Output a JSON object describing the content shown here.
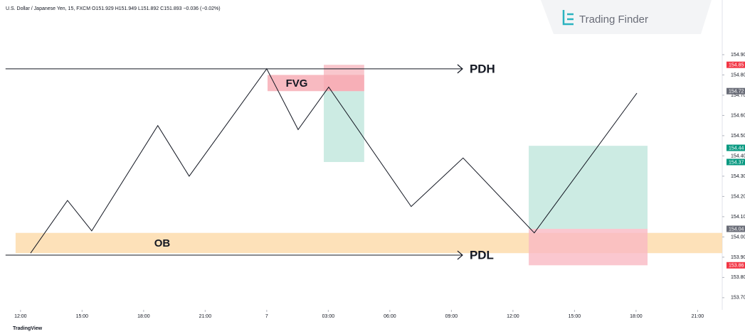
{
  "header": "U.S. Dollar / Japanese Yen, 15, FXCM  O151.929  H151.949  L151.892  C151.893  −0.036 (−0.02%)",
  "logo": "Trading Finder",
  "footer": "TradingView",
  "chart_data": {
    "type": "line",
    "color": "#131722",
    "x": [
      0.49,
      2.29,
      3.47,
      6.69,
      8.22,
      12.0,
      13.53,
      15.02,
      19.04,
      21.57,
      25.04,
      30.04
    ],
    "values": [
      153.92,
      154.18,
      154.03,
      154.55,
      154.3,
      154.83,
      154.53,
      154.74,
      154.15,
      154.39,
      154.02,
      154.71
    ],
    "xlim": [
      -1.0,
      34.2
    ],
    "ylim": [
      153.64,
      155.17
    ],
    "xticks": [
      {
        "value": 0,
        "label": "12:00"
      },
      {
        "value": 3,
        "label": "15:00"
      },
      {
        "value": 6,
        "label": "18:00"
      },
      {
        "value": 9,
        "label": "21:00"
      },
      {
        "value": 12,
        "label": "7"
      },
      {
        "value": 15,
        "label": "03:00"
      },
      {
        "value": 18,
        "label": "06:00"
      },
      {
        "value": 21,
        "label": "09:00"
      },
      {
        "value": 24,
        "label": "12:00"
      },
      {
        "value": 27,
        "label": "15:00"
      },
      {
        "value": 30,
        "label": "18:00"
      },
      {
        "value": 33,
        "label": "21:00"
      }
    ],
    "yticks": [
      {
        "value": 154.9,
        "label": "154.90"
      },
      {
        "value": 154.8,
        "label": "154.80"
      },
      {
        "value": 154.7,
        "label": "154.70"
      },
      {
        "value": 154.6,
        "label": "154.60"
      },
      {
        "value": 154.5,
        "label": "154.50"
      },
      {
        "value": 154.4,
        "label": "154.40"
      },
      {
        "value": 154.3,
        "label": "154.30"
      },
      {
        "value": 154.2,
        "label": "154.20"
      },
      {
        "value": 154.1,
        "label": "154.10"
      },
      {
        "value": 154.0,
        "label": "154.00"
      },
      {
        "value": 153.9,
        "label": "153.90"
      },
      {
        "value": 153.8,
        "label": "153.80"
      },
      {
        "value": 153.7,
        "label": "153.70"
      }
    ],
    "price_tags": [
      {
        "value": 154.85,
        "color": "#f23645"
      },
      {
        "value": 154.72,
        "color": "#6a6d78"
      },
      {
        "value": 154.44,
        "color": "#089981"
      },
      {
        "value": 154.37,
        "color": "#089981"
      },
      {
        "value": 154.04,
        "color": "#6a6d78"
      },
      {
        "value": 153.86,
        "color": "#f23645"
      }
    ],
    "zones": [
      {
        "label": "OB",
        "x": [
          -0.24,
          34.2
        ],
        "y": [
          153.92,
          154.02
        ],
        "color": "#fcd9a8"
      },
      {
        "x": [
          14.78,
          16.75
        ],
        "y": [
          154.72,
          154.85
        ],
        "color": "#f7b9c1"
      },
      {
        "x": [
          14.78,
          16.75
        ],
        "y": [
          154.37,
          154.72
        ],
        "color": "#bfe6dc"
      },
      {
        "label": "FVG",
        "x": [
          12.04,
          16.75
        ],
        "y": [
          154.72,
          154.8
        ],
        "color": "#f6a9b2"
      },
      {
        "x": [
          24.77,
          30.56
        ],
        "y": [
          154.04,
          154.45
        ],
        "color": "#bfe6dc"
      },
      {
        "x": [
          24.77,
          30.56
        ],
        "y": [
          153.86,
          154.04
        ],
        "color": "#f9b9c3"
      }
    ],
    "lines": [
      {
        "label": "PDH",
        "x": [
          -0.73,
          21.54
        ],
        "y": 154.83
      },
      {
        "label": "PDL",
        "x": [
          -0.73,
          21.54
        ],
        "y": 153.91
      }
    ]
  }
}
